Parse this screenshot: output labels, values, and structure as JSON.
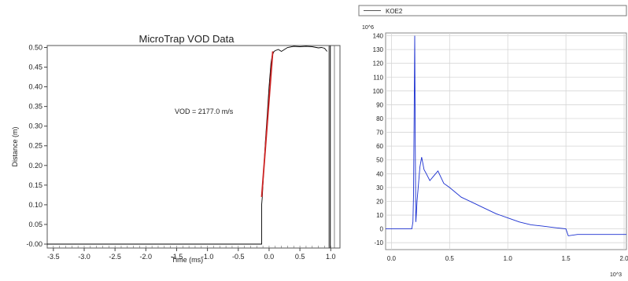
{
  "chart_data": [
    {
      "type": "line",
      "title": "MicroTrap VOD Data",
      "xlabel": "Time (ms)",
      "ylabel": "Distance (m)",
      "xlim": [
        -3.6,
        1.15
      ],
      "ylim": [
        -0.01,
        0.505
      ],
      "xticks": [
        -3.5,
        -3.0,
        -2.5,
        -2.0,
        -1.5,
        -1.0,
        -0.5,
        0.0,
        0.5,
        1.0
      ],
      "xtick_labels": [
        "-3.5",
        "-3.0",
        "-2.5",
        "-2.0",
        "-1.5",
        "-1.0",
        "-0.5",
        "0.0",
        "0.5",
        "1.0"
      ],
      "yticks": [
        0.0,
        0.05,
        0.1,
        0.15,
        0.2,
        0.25,
        0.3,
        0.35,
        0.4,
        0.45,
        0.5
      ],
      "ytick_labels": [
        "-0.00",
        "0.05",
        "0.10",
        "0.15",
        "0.20",
        "0.25",
        "0.30",
        "0.35",
        "0.40",
        "0.45",
        "0.50"
      ],
      "annotation": "VOD = 2177.0 m/s",
      "grid": false,
      "series": [
        {
          "color": "#000000",
          "x": [
            -3.6,
            -0.12,
            -0.12,
            -0.11,
            -0.09,
            -0.06,
            -0.03,
            0.0,
            0.03,
            0.05,
            0.08,
            0.1,
            0.15,
            0.2,
            0.3,
            0.4,
            0.5,
            0.6,
            0.7,
            0.8,
            0.85,
            0.9,
            0.94
          ],
          "y": [
            0.0,
            0.0,
            0.1,
            0.12,
            0.18,
            0.26,
            0.33,
            0.4,
            0.46,
            0.48,
            0.49,
            0.492,
            0.495,
            0.49,
            0.5,
            0.503,
            0.502,
            0.503,
            0.502,
            0.499,
            0.5,
            0.498,
            0.49
          ]
        },
        {
          "color": "#cc2222",
          "x": [
            -0.12,
            0.06
          ],
          "y": [
            0.12,
            0.49
          ]
        }
      ],
      "vertical_lines_x": [
        0.97,
        0.99,
        1.06
      ]
    },
    {
      "type": "line",
      "legend": [
        "KOE2"
      ],
      "legend_placement": "top",
      "y_multiplier": "10^6",
      "x_multiplier": "10^3",
      "xlim": [
        -0.05,
        2.02
      ],
      "ylim": [
        -15,
        142
      ],
      "xticks": [
        0.0,
        0.5,
        1.0,
        1.5,
        2.0
      ],
      "xtick_labels": [
        "0.0",
        "0.5",
        "1.0",
        "1.5",
        "2.0"
      ],
      "yticks": [
        -10,
        0,
        10,
        20,
        30,
        40,
        50,
        60,
        70,
        80,
        90,
        100,
        110,
        120,
        130,
        140
      ],
      "ytick_labels": [
        "-10",
        "0",
        "10",
        "20",
        "30",
        "40",
        "50",
        "60",
        "70",
        "80",
        "90",
        "100",
        "110",
        "120",
        "130",
        "140"
      ],
      "grid": true,
      "series": [
        {
          "name": "KOE2",
          "color": "#1a2fd0",
          "x": [
            -0.05,
            0.15,
            0.175,
            0.185,
            0.19,
            0.2,
            0.205,
            0.21,
            0.215,
            0.22,
            0.23,
            0.245,
            0.26,
            0.28,
            0.3,
            0.33,
            0.36,
            0.4,
            0.45,
            0.5,
            0.6,
            0.7,
            0.8,
            0.9,
            1.0,
            1.1,
            1.2,
            1.3,
            1.4,
            1.5,
            1.52,
            1.6,
            1.8,
            2.0,
            2.02
          ],
          "y": [
            0,
            0,
            0,
            5,
            25,
            140,
            60,
            5,
            12,
            20,
            30,
            45,
            52,
            43,
            40,
            35,
            38,
            42,
            33,
            30,
            23,
            19,
            15,
            11,
            8,
            5,
            3,
            2,
            1,
            0,
            -5,
            -4,
            -4,
            -4,
            -4
          ]
        }
      ]
    }
  ]
}
